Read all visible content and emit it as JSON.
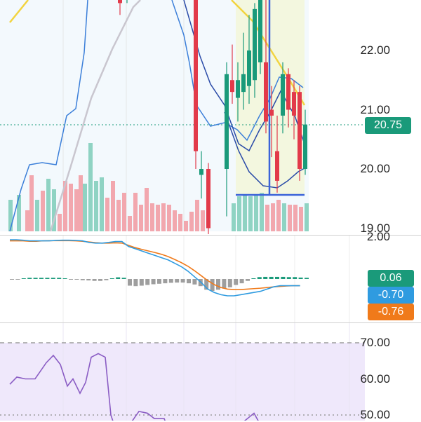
{
  "colors": {
    "up": "#1a9a7a",
    "down": "#e23a4a",
    "vol_up": "#8fd3c3",
    "vol_down": "#f2a7ae",
    "bb_band": "#3b7fd9",
    "bb_fill": "#eaf4fb",
    "ma_yellow": "#f2d440",
    "ma_grey": "#c9c6cf",
    "macd_line": "#2f9be0",
    "signal_line": "#f07a1a",
    "rsi_line": "#8a5cc4",
    "rsi_fill": "#efe8fb",
    "highlight_fill": "#f3f7df",
    "highlight_box": "#3b63d9"
  },
  "price_axis": {
    "labels": [
      "22.00",
      "21.00",
      "20.00",
      "19.00"
    ],
    "current_price": "20.75"
  },
  "macd_axis": {
    "top_label": "2.00",
    "histogram_value": "0.06",
    "macd_value": "-0.70",
    "signal_value": "-0.76"
  },
  "rsi_axis": {
    "labels": [
      "70.00",
      "60.00",
      "50.00"
    ]
  },
  "chart_data": {
    "type": "line",
    "series": [
      {
        "values": [
          2.0,
          2.0,
          1.98,
          1.95,
          1.95,
          1.95,
          1.95,
          1.97,
          1.98,
          1.98,
          1.97,
          1.95,
          1.88,
          1.85,
          1.85,
          1.88,
          1.92,
          1.92,
          1.7,
          1.6,
          1.5,
          1.4,
          1.3,
          1.2,
          1.1,
          0.95,
          0.8,
          0.6,
          0.35,
          0.1,
          -0.2,
          -0.35,
          -0.45,
          -0.5,
          -0.5,
          -0.45,
          -0.4,
          -0.35,
          -0.3,
          -0.2,
          -0.1,
          -0.05,
          -0.05,
          -0.05,
          -0.05
        ]
      },
      {
        "values": [
          1.95,
          1.95,
          1.95,
          1.93,
          1.93,
          1.95,
          1.96,
          1.96,
          1.96,
          1.96,
          1.95,
          1.93,
          1.9,
          1.87,
          1.85,
          1.85,
          1.86,
          1.85,
          1.75,
          1.65,
          1.57,
          1.5,
          1.43,
          1.35,
          1.25,
          1.12,
          0.98,
          0.82,
          0.62,
          0.4,
          0.18,
          0.0,
          -0.13,
          -0.2,
          -0.22,
          -0.22,
          -0.2,
          -0.18,
          -0.16,
          -0.13,
          -0.1,
          -0.08,
          -0.06,
          -0.05,
          -0.05
        ]
      }
    ]
  }
}
